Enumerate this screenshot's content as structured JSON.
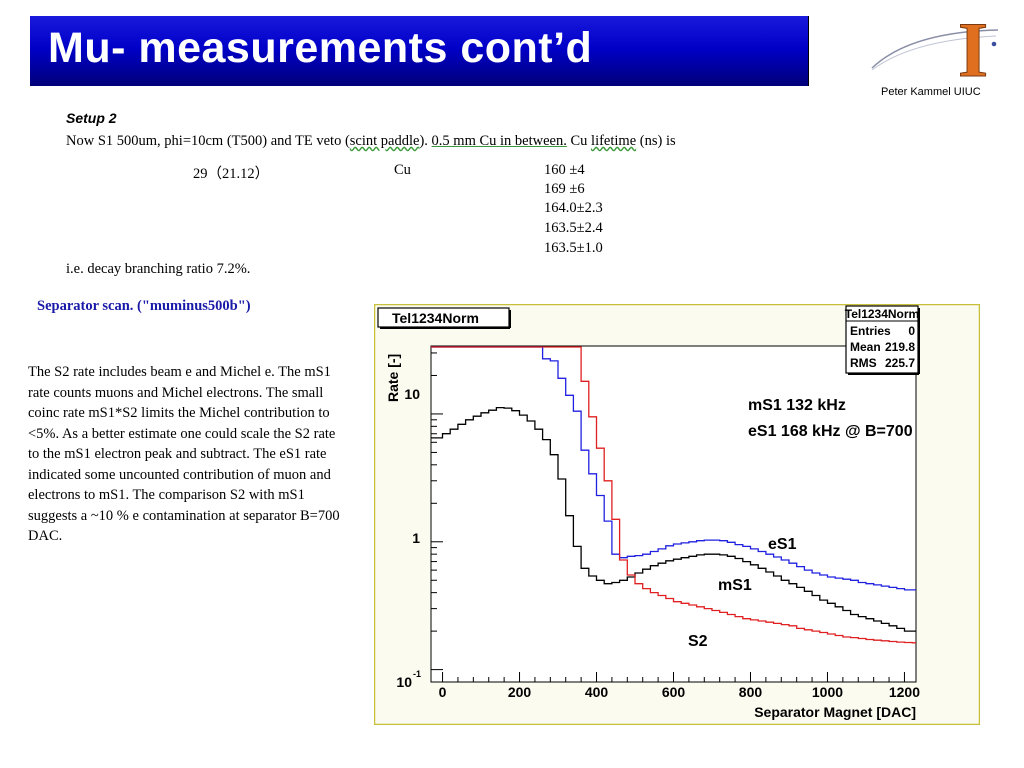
{
  "slide": {
    "title": "Mu- measurements cont’d",
    "author": "Peter Kammel  UIUC",
    "logo_letter": "I"
  },
  "setup": {
    "title": "Setup 2",
    "line_a": "Now S1 500um, phi=10cm (T500) and TE veto (",
    "line_b": "scint paddle",
    "line_c": "). ",
    "line_d": "0.5 mm Cu in between.",
    "line_e": " Cu ",
    "line_f": "lifetime",
    "line_g": " (ns) is",
    "left_value": "29（21.12）",
    "material": "Cu",
    "lifetimes": [
      "160   ±4",
      "169   ±6",
      "164.0±2.3",
      "163.5±2.4",
      "163.5±1.0"
    ],
    "conclusion": "i.e. decay branching ratio 7.2%."
  },
  "separator": {
    "title": "Separator scan. (\"muminus500b\")",
    "paragraph": "The S2 rate includes beam e and Michel e. The mS1 rate counts muons and Michel electrons. The small coinc rate mS1*S2 limits the Michel contribution to <5%. As a better estimate one could scale the S2 rate to the mS1 electron peak and subtract. The eS1 rate indicated some uncounted contribution of muon and electrons to mS1. The comparison S2 with mS1 suggests a ~10 % e contamination at separator B=700 DAC."
  },
  "chart_data": {
    "type": "line",
    "title": "Tel1234Norm",
    "xlabel": "Separator Magnet [DAC]",
    "ylabel": "Rate [-]",
    "log_y": true,
    "xlim": [
      -30,
      1230
    ],
    "ylim": [
      0.08,
      34
    ],
    "x_ticks": [
      0,
      200,
      400,
      600,
      800,
      1000,
      1200
    ],
    "y_tick_labels": [
      "10",
      "1",
      "10"
    ],
    "y_tick_exp": "-1",
    "grid": false,
    "stats_box": {
      "title": "Tel1234Norm",
      "rows": [
        {
          "label": "Entries",
          "value": "0"
        },
        {
          "label": "Mean",
          "value": "219.8"
        },
        {
          "label": "RMS",
          "value": "225.7"
        }
      ]
    },
    "annotations": [
      "mS1  132 kHz",
      "eS1 168 kHz @ B=700"
    ],
    "colors": {
      "eS1": "#2020e0",
      "mS1": "#000000",
      "S2": "#e02020"
    },
    "series": [
      {
        "name": "eS1",
        "color": "#2020e0",
        "x": [
          -30,
          250,
          260,
          280,
          300,
          320,
          340,
          360,
          380,
          400,
          420,
          440,
          460,
          480,
          500,
          520,
          540,
          560,
          580,
          600,
          620,
          640,
          660,
          680,
          700,
          720,
          740,
          760,
          780,
          800,
          820,
          840,
          860,
          880,
          900,
          920,
          940,
          960,
          980,
          1000,
          1020,
          1040,
          1060,
          1080,
          1100,
          1120,
          1140,
          1160,
          1180,
          1200,
          1220
        ],
        "y": [
          34,
          34,
          27,
          26,
          19,
          14,
          10.5,
          5.2,
          3.4,
          2.3,
          1.45,
          0.8,
          0.75,
          0.77,
          0.78,
          0.8,
          0.84,
          0.88,
          0.93,
          0.96,
          0.98,
          1.0,
          1.02,
          1.03,
          1.03,
          1.02,
          0.99,
          0.95,
          0.92,
          0.88,
          0.84,
          0.8,
          0.76,
          0.72,
          0.68,
          0.64,
          0.6,
          0.57,
          0.55,
          0.53,
          0.52,
          0.51,
          0.5,
          0.48,
          0.47,
          0.46,
          0.45,
          0.44,
          0.43,
          0.42,
          0.42
        ]
      },
      {
        "name": "mS1",
        "color": "#000000",
        "x": [
          -30,
          0,
          20,
          40,
          60,
          80,
          100,
          120,
          140,
          160,
          180,
          200,
          220,
          240,
          260,
          280,
          300,
          320,
          340,
          360,
          380,
          400,
          420,
          440,
          460,
          480,
          500,
          520,
          540,
          560,
          580,
          600,
          620,
          640,
          660,
          680,
          700,
          720,
          740,
          760,
          780,
          800,
          820,
          840,
          860,
          880,
          900,
          920,
          940,
          960,
          980,
          1000,
          1020,
          1040,
          1060,
          1080,
          1100,
          1120,
          1140,
          1160,
          1180,
          1200,
          1220
        ],
        "y": [
          6.5,
          7.0,
          7.6,
          8.3,
          9.0,
          9.6,
          10.2,
          10.7,
          11.2,
          11.1,
          10.6,
          9.8,
          8.8,
          7.6,
          6.3,
          4.8,
          3.1,
          1.6,
          0.92,
          0.62,
          0.54,
          0.5,
          0.47,
          0.48,
          0.5,
          0.53,
          0.57,
          0.61,
          0.65,
          0.68,
          0.71,
          0.73,
          0.75,
          0.77,
          0.79,
          0.8,
          0.8,
          0.79,
          0.77,
          0.74,
          0.7,
          0.66,
          0.62,
          0.58,
          0.54,
          0.5,
          0.47,
          0.44,
          0.41,
          0.38,
          0.35,
          0.33,
          0.31,
          0.29,
          0.27,
          0.26,
          0.25,
          0.24,
          0.23,
          0.22,
          0.21,
          0.2,
          0.2
        ]
      },
      {
        "name": "S2",
        "color": "#e02020",
        "x": [
          -30,
          340,
          360,
          380,
          400,
          420,
          440,
          460,
          480,
          500,
          520,
          540,
          560,
          580,
          600,
          620,
          640,
          660,
          680,
          700,
          720,
          740,
          760,
          780,
          800,
          820,
          840,
          860,
          880,
          900,
          920,
          940,
          960,
          980,
          1000,
          1020,
          1040,
          1060,
          1080,
          1100,
          1120,
          1140,
          1160,
          1180,
          1200,
          1220
        ],
        "y": [
          34,
          34,
          18,
          9.5,
          5.4,
          3.0,
          1.5,
          0.72,
          0.55,
          0.47,
          0.43,
          0.4,
          0.38,
          0.36,
          0.34,
          0.33,
          0.32,
          0.31,
          0.3,
          0.29,
          0.28,
          0.27,
          0.26,
          0.25,
          0.245,
          0.24,
          0.235,
          0.23,
          0.225,
          0.22,
          0.21,
          0.205,
          0.2,
          0.195,
          0.19,
          0.185,
          0.18,
          0.178,
          0.175,
          0.172,
          0.17,
          0.168,
          0.166,
          0.164,
          0.163,
          0.162
        ]
      }
    ]
  }
}
